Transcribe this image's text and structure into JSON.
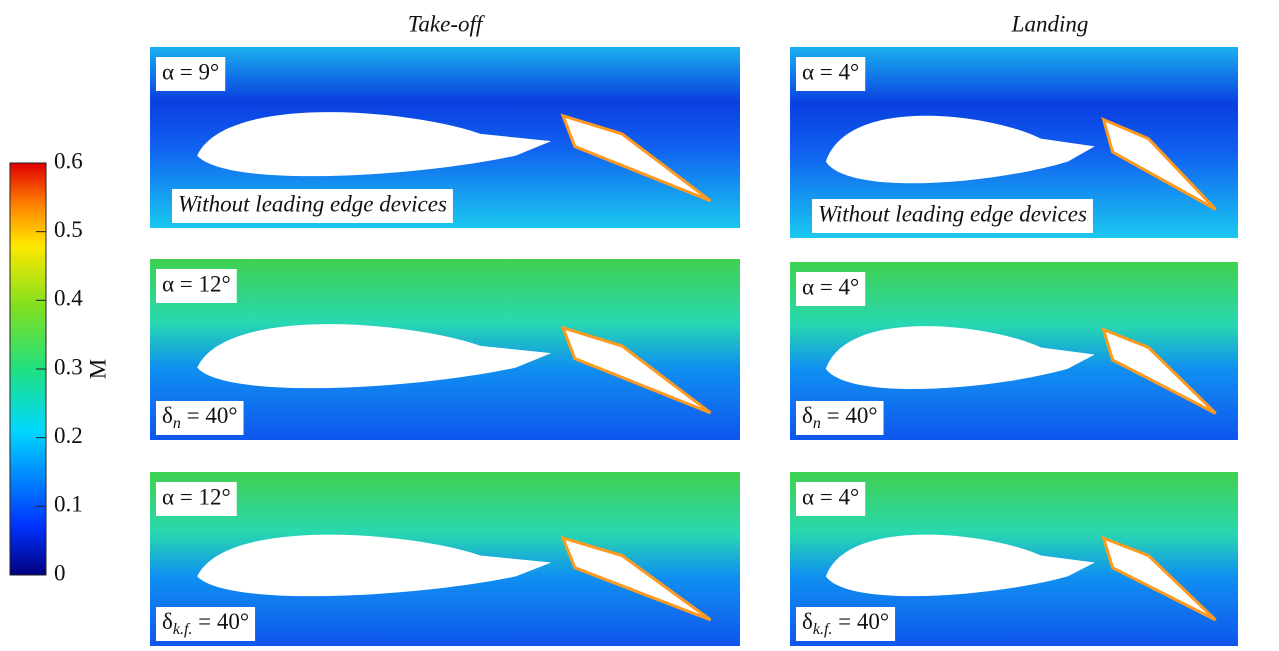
{
  "figure": {
    "column_titles": [
      "Take-off",
      "Landing"
    ],
    "colorbar": {
      "label": "M",
      "lim": [
        0,
        0.6
      ],
      "ticks": [
        0,
        0.1,
        0.2,
        0.3,
        0.4,
        0.5,
        0.6
      ]
    },
    "panels": [
      {
        "angle": "α = 9°",
        "config": {
          "text": "Without leading edge devices"
        }
      },
      {
        "angle": "α = 4°",
        "config": {
          "text": "Without leading edge devices"
        }
      },
      {
        "angle": "α = 12°",
        "config": {
          "symbol": "δ",
          "sub": "n",
          "rest": " = 40°"
        }
      },
      {
        "angle": "α = 4°",
        "config": {
          "symbol": "δ",
          "sub": "n",
          "rest": " = 40°"
        }
      },
      {
        "angle": "α = 12°",
        "config": {
          "symbol": "δ",
          "sub": "k.f.",
          "rest": " = 40°"
        }
      },
      {
        "angle": "α = 4°",
        "config": {
          "symbol": "δ",
          "sub": "k.f.",
          "rest": " = 40°"
        }
      }
    ]
  }
}
